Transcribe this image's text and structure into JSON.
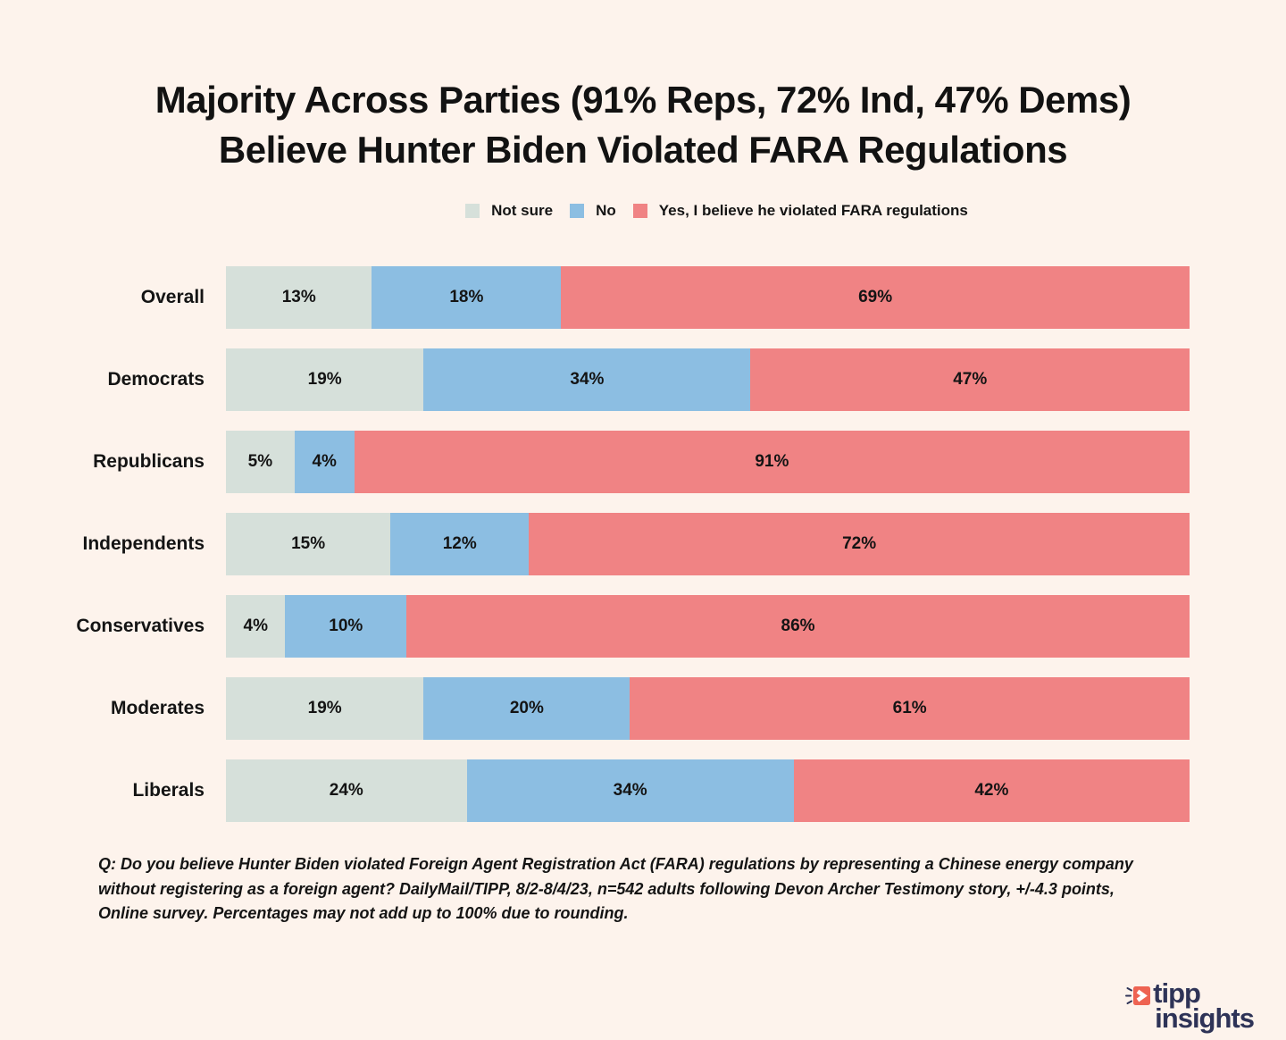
{
  "page": {
    "background": "#FDF3EC"
  },
  "title": {
    "line1": "Majority Across Parties (91% Reps, 72% Ind, 47% Dems)",
    "line2": "Believe Hunter Biden Violated FARA Regulations"
  },
  "chart_data": {
    "type": "bar",
    "orientation": "horizontal-stacked",
    "title": "Majority Across Parties (91% Reps, 72% Ind, 47% Dems) Believe Hunter Biden Violated FARA Regulations",
    "xlabel": "",
    "ylabel": "",
    "xlim": [
      0,
      100
    ],
    "grid": false,
    "legend_position": "top-center",
    "value_suffix": "%",
    "categories": [
      "Overall",
      "Democrats",
      "Republicans",
      "Independents",
      "Conservatives",
      "Moderates",
      "Liberals"
    ],
    "series": [
      {
        "name": "Not sure",
        "color": "#D6E0DA",
        "values": [
          13,
          19,
          5,
          15,
          4,
          19,
          24
        ]
      },
      {
        "name": "No",
        "color": "#8CBEE2",
        "values": [
          18,
          34,
          4,
          12,
          10,
          20,
          34
        ]
      },
      {
        "name": "Yes, I believe he violated FARA regulations",
        "color": "#F08384",
        "values": [
          69,
          47,
          91,
          72,
          86,
          61,
          42
        ]
      }
    ]
  },
  "footnote": {
    "lines": [
      "Q: Do you believe Hunter Biden violated Foreign Agent Registration Act (FARA) regulations by representing a Chinese energy company",
      "without registering as a foreign agent? DailyMail/TIPP, 8/2-8/4/23, n=542 adults following Devon Archer Testimony story, +/-4.3 points,",
      "Online survey. Percentages may not add up to 100% due to rounding."
    ]
  },
  "logo": {
    "line1": "tipp",
    "line2": "insights",
    "text_color": "#2E3357",
    "icon_color": "#EE6352"
  }
}
